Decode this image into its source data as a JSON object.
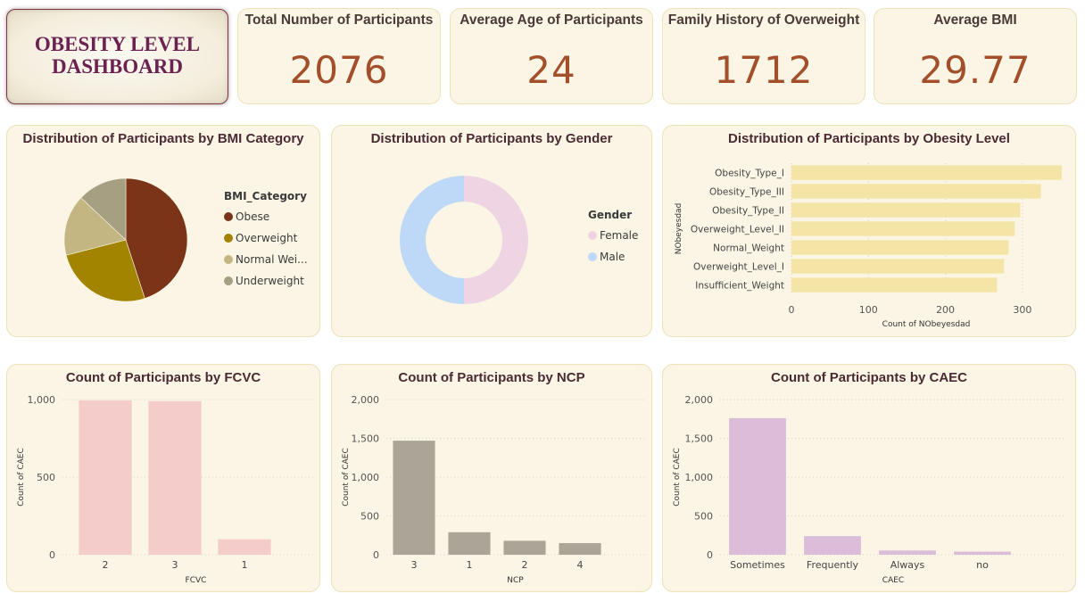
{
  "dashboard_title": "OBESITY LEVEL DASHBOARD",
  "kpis": [
    {
      "label": "Total Number of Participants",
      "value": "2076"
    },
    {
      "label": "Average Age of Participants",
      "value": "24"
    },
    {
      "label": "Family History of Overweight",
      "value": "1712"
    },
    {
      "label": "Average BMI",
      "value": "29.77"
    }
  ],
  "chart_data": [
    {
      "type": "pie",
      "title": "Distribution of Participants by BMI Category",
      "legend_title": "BMI_Category",
      "categories": [
        "Obese",
        "Overweight",
        "Normal Wei...",
        "Underweight"
      ],
      "values": [
        45,
        26,
        16,
        13
      ],
      "colors": [
        "#7b3418",
        "#a38400",
        "#c4b682",
        "#a69f82"
      ],
      "legend_placement": "right"
    },
    {
      "type": "pie",
      "donut": true,
      "title": "Distribution of Participants by Gender",
      "legend_title": "Gender",
      "categories": [
        "Female",
        "Male"
      ],
      "values": [
        50,
        50
      ],
      "colors": [
        "#efd4e4",
        "#bdd9f7"
      ],
      "legend_placement": "right"
    },
    {
      "type": "bar",
      "orientation": "horizontal",
      "title": "Distribution of Participants by Obesity Level",
      "categories": [
        "Obesity_Type_I",
        "Obesity_Type_III",
        "Obesity_Type_II",
        "Overweight_Level_II",
        "Normal_Weight",
        "Overweight_Level_I",
        "Insufficient_Weight"
      ],
      "values": [
        351,
        324,
        297,
        290,
        282,
        276,
        267
      ],
      "xlabel": "Count of NObeyesdad",
      "ylabel": "NObeyesdad",
      "xlim": [
        0,
        350
      ],
      "xticks": [
        "0",
        "100",
        "200",
        "300"
      ],
      "xtick_values": [
        0,
        100,
        200,
        300
      ],
      "color": "#f4e4a6",
      "grid": true
    },
    {
      "type": "bar",
      "title": "Count of Participants by FCVC",
      "categories": [
        "2",
        "3",
        "1"
      ],
      "values": [
        995,
        990,
        100
      ],
      "xlabel": "FCVC",
      "ylabel": "Count of CAEC",
      "ylim": [
        0,
        1000
      ],
      "yticks": [
        "0",
        "500",
        "1,000"
      ],
      "ytick_values": [
        0,
        500,
        1000
      ],
      "color": "#f4cdca",
      "grid": true
    },
    {
      "type": "bar",
      "title": "Count of Participants by NCP",
      "categories": [
        "3",
        "1",
        "2",
        "4"
      ],
      "values": [
        1470,
        290,
        180,
        150
      ],
      "xlabel": "NCP",
      "ylabel": "Count of CAEC",
      "ylim": [
        0,
        2000
      ],
      "yticks": [
        "0",
        "500",
        "1,000",
        "1,500",
        "2,000"
      ],
      "ytick_values": [
        0,
        500,
        1000,
        1500,
        2000
      ],
      "color": "#aaa596",
      "grid": true
    },
    {
      "type": "bar",
      "title": "Count of Participants by CAEC",
      "categories": [
        "Sometimes",
        "Frequently",
        "Always",
        "no"
      ],
      "values": [
        1760,
        240,
        55,
        40
      ],
      "xlabel": "CAEC",
      "ylabel": "Count of CAEC",
      "ylim": [
        0,
        2000
      ],
      "yticks": [
        "0",
        "500",
        "1,000",
        "1,500",
        "2,000"
      ],
      "ytick_values": [
        0,
        500,
        1000,
        1500,
        2000
      ],
      "color": "#dbbcd9",
      "grid": true
    }
  ]
}
